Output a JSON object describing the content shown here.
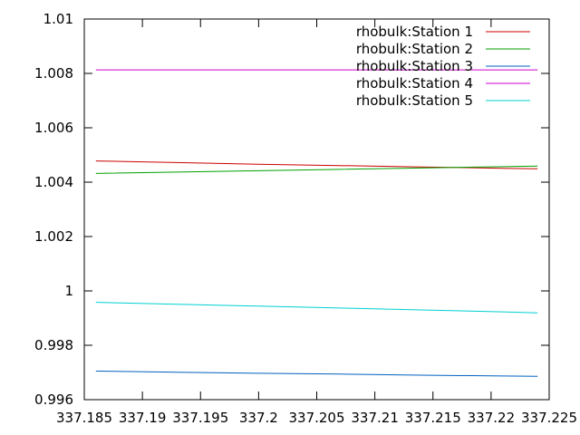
{
  "chart_data": {
    "type": "line",
    "title": "",
    "xlabel": "",
    "ylabel": "",
    "xlim": [
      337.185,
      337.225
    ],
    "ylim": [
      0.996,
      1.01
    ],
    "grid": false,
    "legend_position": "top-right",
    "x_ticks": [
      {
        "value": 337.185,
        "label": "337.185"
      },
      {
        "value": 337.19,
        "label": "337.19"
      },
      {
        "value": 337.195,
        "label": "337.195"
      },
      {
        "value": 337.2,
        "label": "337.2"
      },
      {
        "value": 337.205,
        "label": "337.205"
      },
      {
        "value": 337.21,
        "label": "337.21"
      },
      {
        "value": 337.215,
        "label": "337.215"
      },
      {
        "value": 337.22,
        "label": "337.22"
      },
      {
        "value": 337.225,
        "label": "337.225"
      }
    ],
    "y_ticks": [
      {
        "value": 0.996,
        "label": "0.996"
      },
      {
        "value": 0.998,
        "label": "0.998"
      },
      {
        "value": 1.0,
        "label": "1"
      },
      {
        "value": 1.002,
        "label": "1.002"
      },
      {
        "value": 1.004,
        "label": "1.004"
      },
      {
        "value": 1.006,
        "label": "1.006"
      },
      {
        "value": 1.008,
        "label": "1.008"
      },
      {
        "value": 1.01,
        "label": "1.01"
      }
    ],
    "series": [
      {
        "name": "rhobulk:Station 1",
        "color": "#cc0000",
        "x": [
          337.186,
          337.193,
          337.2,
          337.207,
          337.214,
          337.221,
          337.224
        ],
        "y": [
          1.00478,
          1.00472,
          1.00466,
          1.00461,
          1.00456,
          1.00451,
          1.00449
        ]
      },
      {
        "name": "rhobulk:Station 2",
        "color": "#00a000",
        "x": [
          337.186,
          337.193,
          337.2,
          337.207,
          337.214,
          337.221,
          337.224
        ],
        "y": [
          1.00432,
          1.00437,
          1.00442,
          1.00447,
          1.00452,
          1.00457,
          1.00459
        ]
      },
      {
        "name": "rhobulk:Station 3",
        "color": "#0060c0",
        "x": [
          337.186,
          337.193,
          337.2,
          337.207,
          337.214,
          337.221,
          337.224
        ],
        "y": [
          0.99705,
          0.99701,
          0.99697,
          0.99694,
          0.9969,
          0.99687,
          0.99686
        ]
      },
      {
        "name": "rhobulk:Station 4",
        "color": "#cc00cc",
        "x": [
          337.186,
          337.224
        ],
        "y": [
          1.00813,
          1.00813
        ]
      },
      {
        "name": "rhobulk:Station 5",
        "color": "#00d0d0",
        "x": [
          337.186,
          337.193,
          337.2,
          337.207,
          337.214,
          337.221,
          337.224
        ],
        "y": [
          0.99958,
          0.99951,
          0.99944,
          0.99937,
          0.9993,
          0.99923,
          0.99919
        ]
      }
    ]
  }
}
